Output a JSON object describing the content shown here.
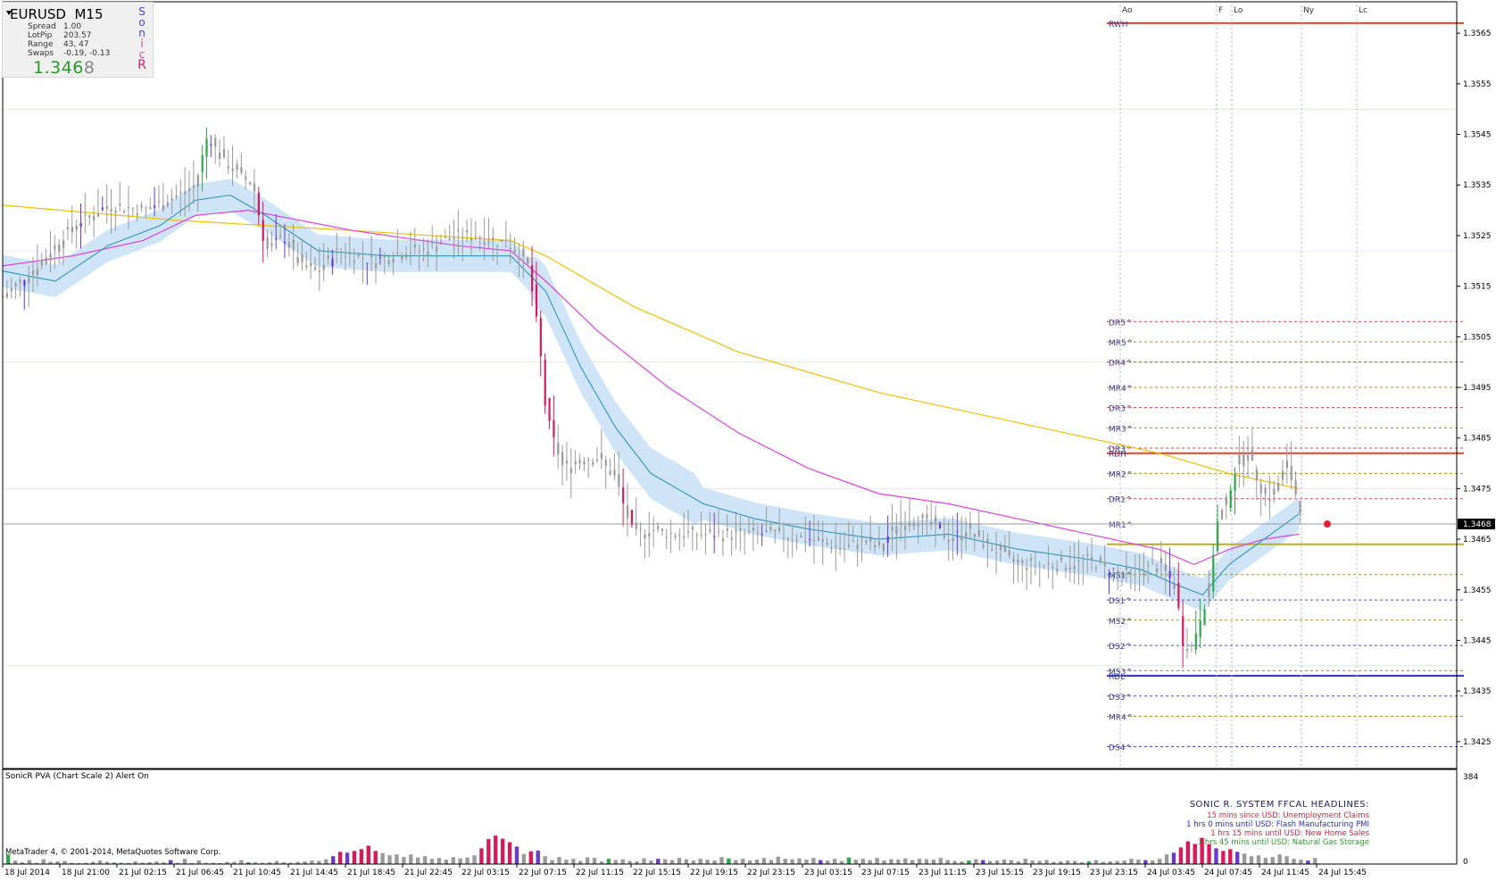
{
  "info": {
    "symbol": "EURUSD",
    "timeframe": "M15",
    "rows": [
      {
        "label": "Spread",
        "value": "1.00"
      },
      {
        "label": "LotPip",
        "value": "203.57"
      },
      {
        "label": "Range",
        "value": "43, 47"
      },
      {
        "label": "Swaps",
        "value": "-0.19, -0.13"
      }
    ],
    "price_main": "1.346",
    "price_last": "8",
    "sonic_letters": [
      {
        "ch": "S",
        "color": "#4a4ad0"
      },
      {
        "ch": "o",
        "color": "#4a4ad0"
      },
      {
        "ch": "n",
        "color": "#4a4ad0"
      },
      {
        "ch": "i",
        "color": "#d04a8a"
      },
      {
        "ch": "c",
        "color": "#d04a8a"
      },
      {
        "ch": "R",
        "color": "#d0206a"
      }
    ]
  },
  "chart_data": {
    "type": "candlestick",
    "symbol": "EURUSD",
    "timeframe": "M15",
    "ylim": [
      1.34195,
      1.35705
    ],
    "y_ticks": [
      "1.3565",
      "1.3555",
      "1.3545",
      "1.3535",
      "1.3525",
      "1.3515",
      "1.3505",
      "1.3495",
      "1.3485",
      "1.3475",
      "1.3465",
      "1.3455",
      "1.3445",
      "1.3435",
      "1.3425"
    ],
    "current_price": "1.3468",
    "current_price_value": 1.3468,
    "x_ticks": [
      "18 Jul 2014",
      "18 Jul 21:00",
      "21 Jul 02:15",
      "21 Jul 06:45",
      "21 Jul 10:45",
      "21 Jul 14:45",
      "21 Jul 18:45",
      "21 Jul 22:45",
      "22 Jul 03:15",
      "22 Jul 07:15",
      "22 Jul 11:15",
      "22 Jul 15:15",
      "22 Jul 19:15",
      "22 Jul 23:15",
      "23 Jul 03:15",
      "23 Jul 07:15",
      "23 Jul 11:15",
      "23 Jul 15:15",
      "23 Jul 19:15",
      "23 Jul 23:15",
      "24 Jul 03:45",
      "24 Jul 07:45",
      "24 Jul 11:45",
      "24 Jul 15:45"
    ],
    "session_markers": [
      "Ao",
      "F",
      "Lo",
      "Ny",
      "Lc"
    ],
    "levels": [
      {
        "label": "RWH",
        "price": 1.3567,
        "color": "#e8402a",
        "style": "solid"
      },
      {
        "label": "DR5^",
        "price": 1.3508,
        "color": "#d84040",
        "style": "dash"
      },
      {
        "label": "MR5^",
        "price": 1.3504,
        "color": "#9a9a20",
        "style": "dash"
      },
      {
        "label": "DR4^",
        "price": 1.35,
        "color": "#d84040",
        "style": "dash"
      },
      {
        "label": "MR4^",
        "price": 1.3495,
        "color": "#9a9a20",
        "style": "dash"
      },
      {
        "label": "DR3^",
        "price": 1.3491,
        "color": "#d84040",
        "style": "dash"
      },
      {
        "label": "MR3^",
        "price": 1.3487,
        "color": "#9a9a20",
        "style": "dash"
      },
      {
        "label": "DR3^",
        "price": 1.3483,
        "color": "#d84040",
        "style": "dash"
      },
      {
        "label": "RDH",
        "price": 1.3482,
        "color": "#e8402a",
        "style": "solid"
      },
      {
        "label": "MR2^",
        "price": 1.3478,
        "color": "#9a9a20",
        "style": "dash"
      },
      {
        "label": "DR1^",
        "price": 1.3473,
        "color": "#d84040",
        "style": "dash"
      },
      {
        "label": "MR1^",
        "price": 1.3468,
        "color": "#9a9a20",
        "style": "dash"
      },
      {
        "label": "",
        "price": 1.3464,
        "color": "#b8b020",
        "style": "solid"
      },
      {
        "label": "MS1^",
        "price": 1.3458,
        "color": "#9a9a20",
        "style": "dash"
      },
      {
        "label": "DS1^",
        "price": 1.3453,
        "color": "#4a4ad0",
        "style": "dash"
      },
      {
        "label": "MS2^",
        "price": 1.3449,
        "color": "#9a9a20",
        "style": "dash"
      },
      {
        "label": "DS2^",
        "price": 1.3444,
        "color": "#4a4ad0",
        "style": "dash"
      },
      {
        "label": "MS3^",
        "price": 1.3439,
        "color": "#9a9a20",
        "style": "dash"
      },
      {
        "label": "RDL",
        "price": 1.3438,
        "color": "#3030c0",
        "style": "solid"
      },
      {
        "label": "DS3^",
        "price": 1.3434,
        "color": "#4a4ad0",
        "style": "dash"
      },
      {
        "label": "MR4^",
        "price": 1.343,
        "color": "#9a9a20",
        "style": "dash"
      },
      {
        "label": "DS4^",
        "price": 1.3424,
        "color": "#4a4ad0",
        "style": "dash"
      }
    ],
    "price_path": [
      [
        0,
        1.3513
      ],
      [
        2,
        1.3519
      ],
      [
        4,
        1.3527
      ],
      [
        6,
        1.3531
      ],
      [
        8,
        1.353
      ],
      [
        10,
        1.3533
      ],
      [
        11,
        1.3535
      ],
      [
        11.7,
        1.3545
      ],
      [
        12.5,
        1.354
      ],
      [
        13.5,
        1.3537
      ],
      [
        14.3,
        1.3535
      ],
      [
        15,
        1.3522
      ],
      [
        16,
        1.3525
      ],
      [
        17,
        1.3519
      ],
      [
        18,
        1.3518
      ],
      [
        19,
        1.3522
      ],
      [
        20,
        1.3521
      ],
      [
        21,
        1.352
      ],
      [
        22,
        1.3521
      ],
      [
        23,
        1.3522
      ],
      [
        24,
        1.3522
      ],
      [
        25,
        1.3524
      ],
      [
        26,
        1.3525
      ],
      [
        27,
        1.3525
      ],
      [
        28,
        1.3524
      ],
      [
        29,
        1.3523
      ],
      [
        30,
        1.3519
      ],
      [
        30.6,
        1.3505
      ],
      [
        31,
        1.349
      ],
      [
        31.5,
        1.3484
      ],
      [
        32,
        1.3479
      ],
      [
        33,
        1.3481
      ],
      [
        34,
        1.3481
      ],
      [
        35,
        1.3477
      ],
      [
        35.5,
        1.3471
      ],
      [
        36,
        1.3466
      ],
      [
        37,
        1.3467
      ],
      [
        38,
        1.3466
      ],
      [
        40,
        1.3466
      ],
      [
        42,
        1.3466
      ],
      [
        44,
        1.3466
      ],
      [
        46,
        1.3465
      ],
      [
        48,
        1.3463
      ],
      [
        49,
        1.3465
      ],
      [
        50,
        1.3463
      ],
      [
        51,
        1.3468
      ],
      [
        52,
        1.3469
      ],
      [
        53,
        1.3468
      ],
      [
        54,
        1.3465
      ],
      [
        55,
        1.3467
      ],
      [
        56,
        1.3464
      ],
      [
        57,
        1.3462
      ],
      [
        58,
        1.346
      ],
      [
        59,
        1.346
      ],
      [
        60,
        1.346
      ],
      [
        61,
        1.346
      ],
      [
        62,
        1.3461
      ],
      [
        63,
        1.3459
      ],
      [
        64,
        1.3458
      ],
      [
        65,
        1.3459
      ],
      [
        66,
        1.346
      ],
      [
        66.5,
        1.3458
      ],
      [
        67,
        1.3455
      ],
      [
        67.3,
        1.3445
      ],
      [
        67.8,
        1.3443
      ],
      [
        68.3,
        1.3449
      ],
      [
        68.8,
        1.3454
      ],
      [
        69.3,
        1.3468
      ],
      [
        69.8,
        1.3472
      ],
      [
        70.3,
        1.3478
      ],
      [
        70.8,
        1.3483
      ],
      [
        71.3,
        1.348
      ],
      [
        71.8,
        1.3475
      ],
      [
        72.3,
        1.3473
      ],
      [
        72.8,
        1.3476
      ],
      [
        73.3,
        1.348
      ],
      [
        73.8,
        1.3474
      ],
      [
        74.3,
        1.3468
      ]
    ],
    "series": [
      {
        "name": "",
        "color": "#f0c000",
        "points": [
          [
            0,
            1.3531
          ],
          [
            10,
            1.3528
          ],
          [
            20,
            1.3526
          ],
          [
            29,
            1.3524
          ],
          [
            31,
            1.3521
          ],
          [
            36,
            1.3511
          ],
          [
            42,
            1.3502
          ],
          [
            50,
            1.3494
          ],
          [
            58,
            1.3488
          ],
          [
            66,
            1.3482
          ],
          [
            70,
            1.3478
          ],
          [
            74,
            1.3475
          ]
        ]
      },
      {
        "name": "",
        "color": "#e040e0",
        "points": [
          [
            0,
            1.3519
          ],
          [
            4,
            1.3521
          ],
          [
            8,
            1.3524
          ],
          [
            11,
            1.3529
          ],
          [
            14,
            1.353
          ],
          [
            20,
            1.3526
          ],
          [
            26,
            1.3523
          ],
          [
            29,
            1.3522
          ],
          [
            31,
            1.3516
          ],
          [
            34,
            1.3506
          ],
          [
            38,
            1.3495
          ],
          [
            42,
            1.3486
          ],
          [
            46,
            1.3479
          ],
          [
            50,
            1.3474
          ],
          [
            54,
            1.3472
          ],
          [
            58,
            1.3469
          ],
          [
            62,
            1.3466
          ],
          [
            66,
            1.3463
          ],
          [
            68,
            1.346
          ],
          [
            70,
            1.3463
          ],
          [
            72,
            1.3465
          ],
          [
            74,
            1.3466
          ]
        ]
      },
      {
        "name": "",
        "color": "#3a9ac0",
        "points": [
          [
            0,
            1.3518
          ],
          [
            3,
            1.3516
          ],
          [
            6,
            1.3523
          ],
          [
            9,
            1.3527
          ],
          [
            11,
            1.3532
          ],
          [
            13,
            1.3533
          ],
          [
            15,
            1.3529
          ],
          [
            18,
            1.3522
          ],
          [
            22,
            1.3521
          ],
          [
            26,
            1.3521
          ],
          [
            29,
            1.3521
          ],
          [
            31,
            1.3514
          ],
          [
            33,
            1.3499
          ],
          [
            35,
            1.3487
          ],
          [
            37,
            1.3478
          ],
          [
            40,
            1.3472
          ],
          [
            43,
            1.3469
          ],
          [
            46,
            1.3467
          ],
          [
            50,
            1.3465
          ],
          [
            54,
            1.3466
          ],
          [
            58,
            1.3463
          ],
          [
            62,
            1.3461
          ],
          [
            65,
            1.3459
          ],
          [
            67,
            1.3456
          ],
          [
            68.5,
            1.3454
          ],
          [
            70,
            1.346
          ],
          [
            72,
            1.3465
          ],
          [
            74,
            1.347
          ]
        ]
      }
    ],
    "volume": [
      22,
      8,
      4,
      9,
      3,
      11,
      5,
      6,
      7,
      3,
      2,
      3,
      5,
      8,
      5,
      4,
      3,
      2,
      6,
      3,
      4,
      6,
      4,
      9,
      3,
      12,
      2,
      8,
      3,
      3,
      2,
      5,
      5,
      9,
      4,
      4,
      3,
      4,
      7,
      4,
      3,
      5,
      6,
      8,
      7,
      11,
      18,
      28,
      26,
      30,
      34,
      42,
      30,
      25,
      20,
      22,
      16,
      22,
      15,
      18,
      12,
      14,
      10,
      16,
      13,
      15,
      20,
      36,
      57,
      65,
      58,
      50,
      40,
      23,
      29,
      31,
      18,
      9,
      16,
      10,
      12,
      7,
      15,
      14,
      6,
      12,
      9,
      11,
      7,
      6,
      13,
      8,
      12,
      11,
      9,
      14,
      11,
      8,
      12,
      10,
      8,
      16,
      13,
      9,
      12,
      8,
      10,
      14,
      9,
      17,
      12,
      11,
      13,
      10,
      14,
      9,
      8,
      12,
      7,
      15,
      10,
      12,
      9,
      14,
      8,
      11,
      10,
      13,
      9,
      12,
      11,
      10,
      14,
      9,
      7,
      6,
      8,
      11,
      9,
      7,
      8,
      10,
      9,
      6,
      12,
      8,
      7,
      9,
      5,
      6,
      8,
      7,
      4,
      6,
      9,
      5,
      6,
      7,
      8,
      12,
      10,
      9,
      8,
      12,
      22,
      26,
      38,
      52,
      46,
      60,
      45,
      36,
      30,
      34,
      28,
      24,
      18,
      20,
      14,
      16,
      22,
      18,
      12,
      10,
      8,
      14
    ],
    "osc_ylim": [
      0,
      384
    ],
    "osc_tick": "384",
    "osc_tick_zero": "0"
  },
  "oscillator": {
    "label": "SonicR PVA  (Chart Scale 2)   Alert On"
  },
  "headlines": {
    "title": "SONIC R. SYSTEM  FFCAL HEADLINES:",
    "lines": [
      {
        "text": "15 mins since USD: Unemployment Claims",
        "color": "#e02040"
      },
      {
        "text": "1 hrs 0 mins until USD: Flash Manufacturing PMI",
        "color": "#2a2ad0"
      },
      {
        "text": "1 hrs 15 mins until USD: New Home Sales",
        "color": "#e02040"
      },
      {
        "text": "1 hrs 45 mins until USD: Natural Gas Storage",
        "color": "#2a9a2a"
      }
    ]
  },
  "footer": {
    "copyright": "MetaTrader 4, © 2001-2014, MetaQuotes Software Corp."
  },
  "colors": {
    "candle_up": "#2aa84a",
    "candle_down": "#d81a5a",
    "candle_neutral": "#9a9a9a",
    "candle_climax": "#6a3ad0",
    "band_fill": "#cfe5f7",
    "grid": "#e0e0e0"
  }
}
